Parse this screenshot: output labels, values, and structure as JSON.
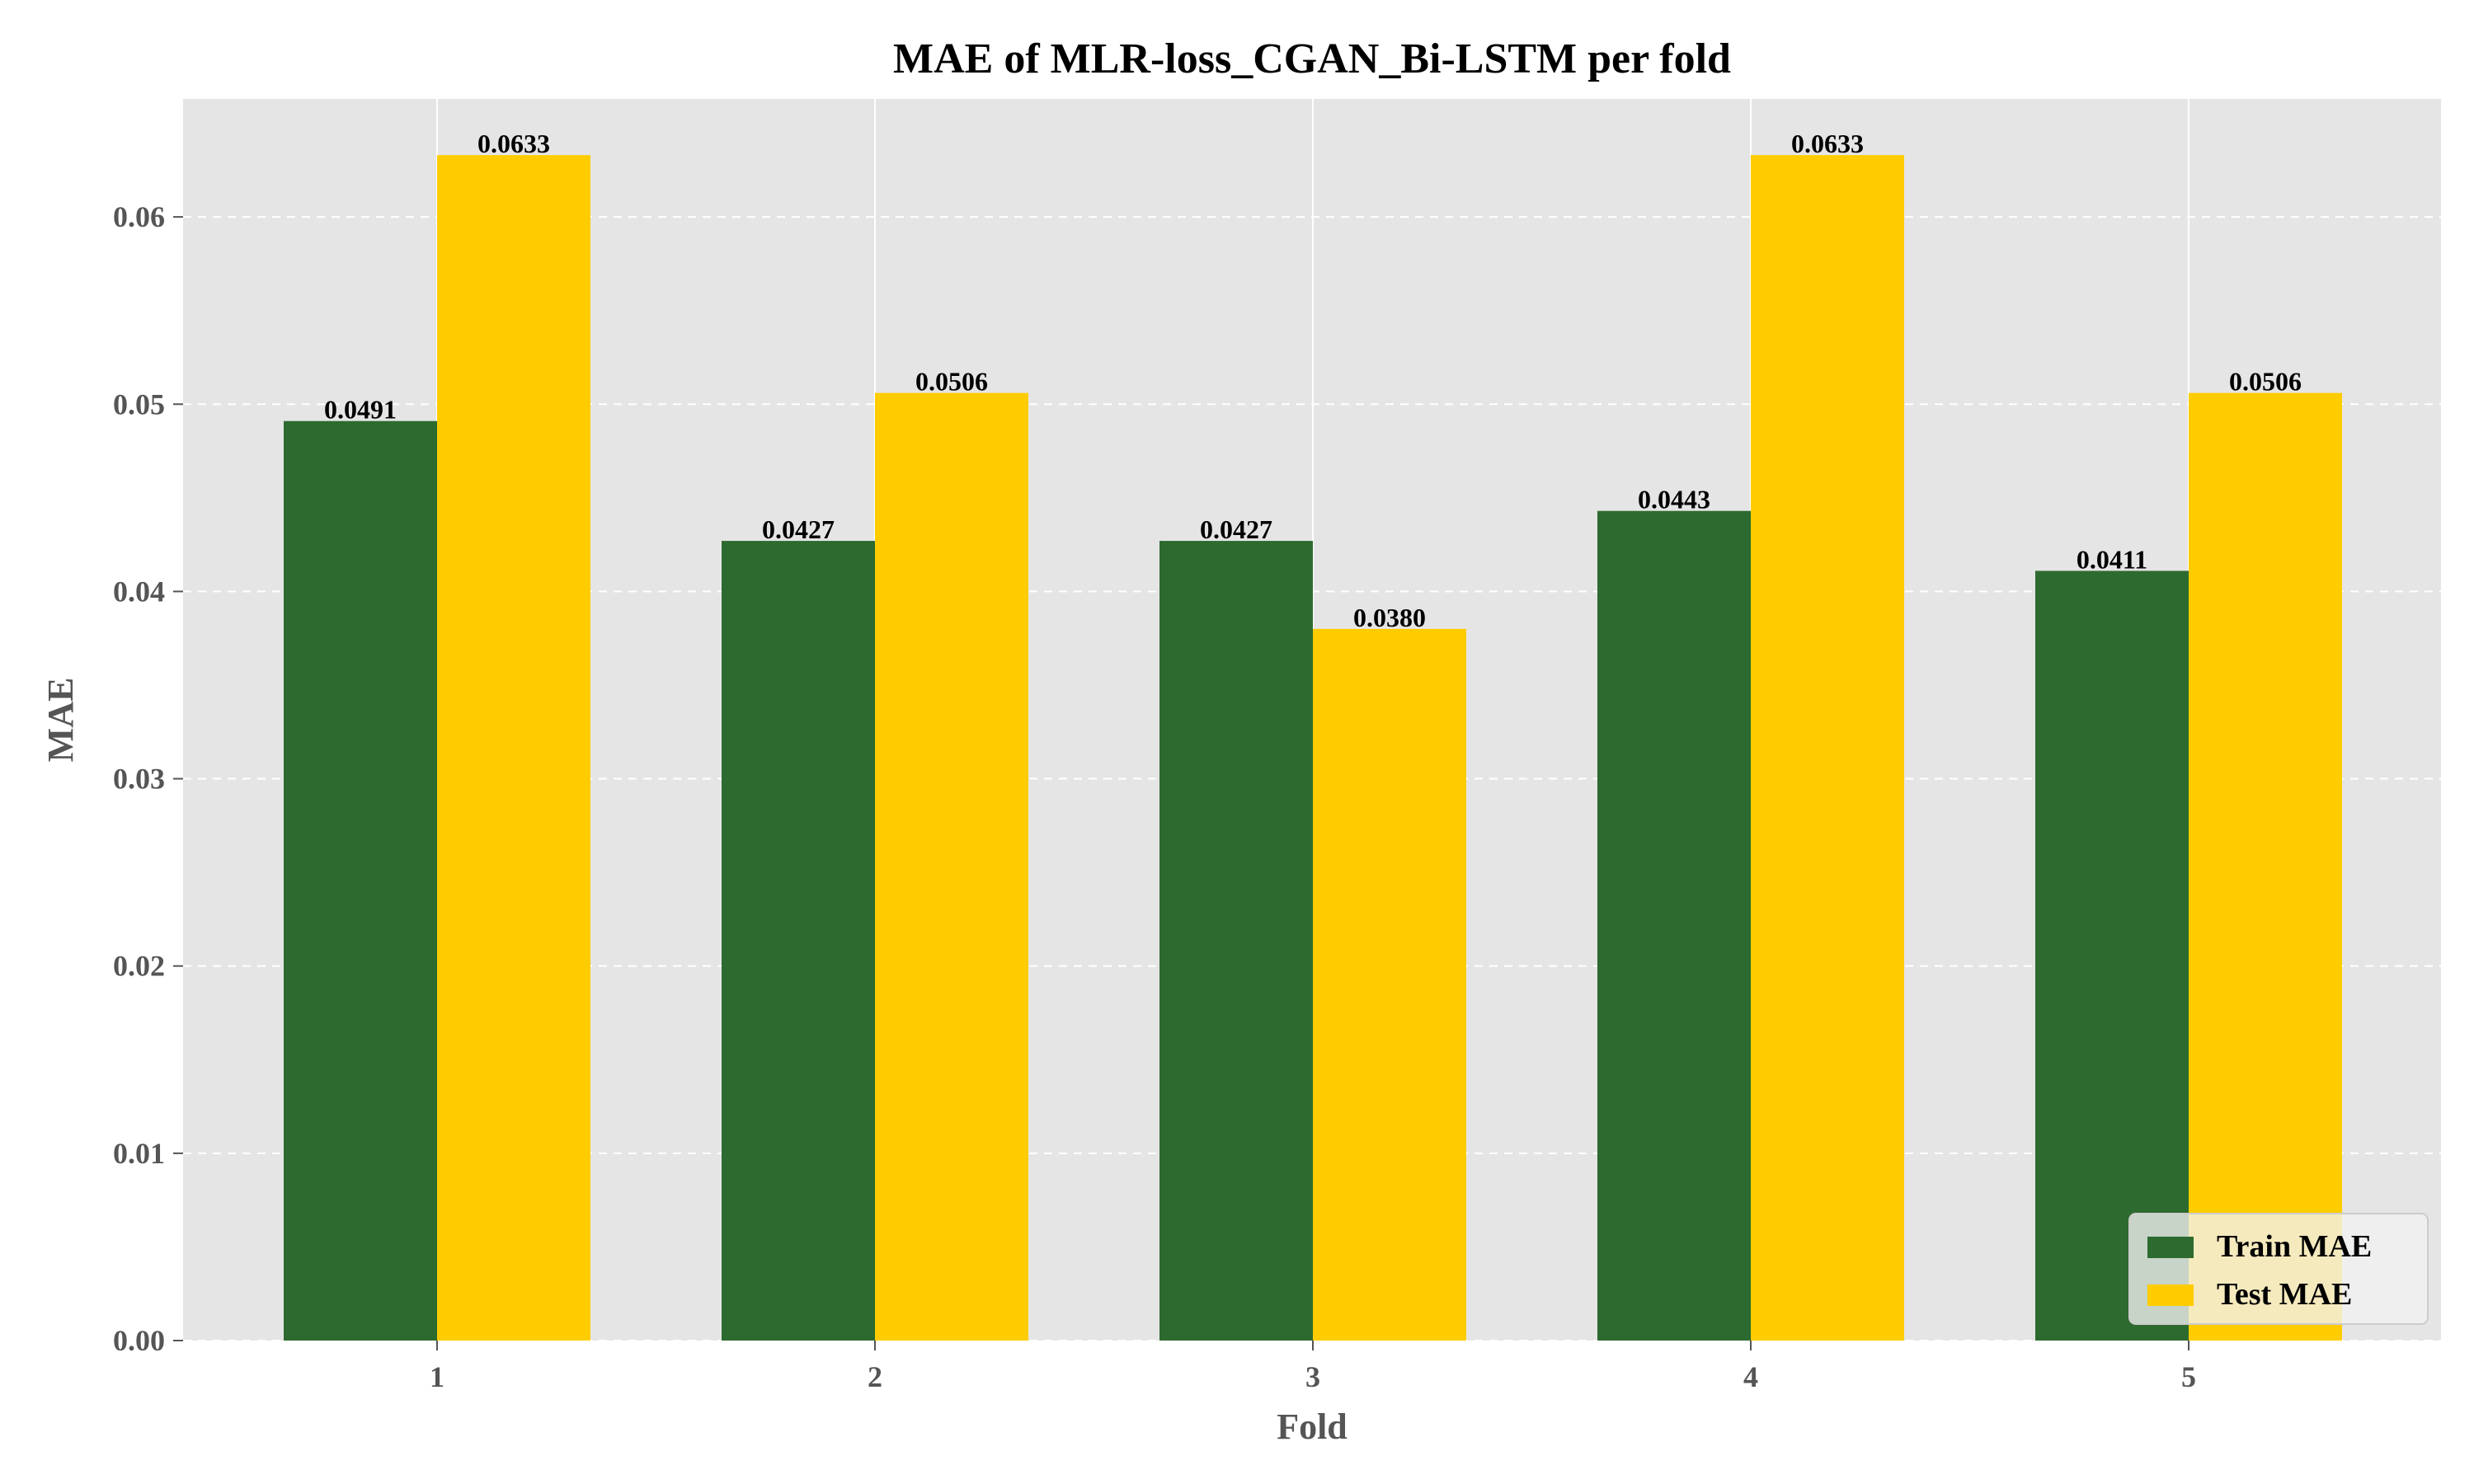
{
  "chart_data": {
    "type": "bar",
    "title": "MAE of MLR-loss_CGAN_Bi-LSTM per fold",
    "xlabel": "Fold",
    "ylabel": "MAE",
    "categories": [
      "1",
      "2",
      "3",
      "4",
      "5"
    ],
    "series": [
      {
        "name": "Train MAE",
        "color": "#2d6a2f",
        "values": [
          0.0491,
          0.0427,
          0.0427,
          0.0443,
          0.0411
        ],
        "labels": [
          "0.0491",
          "0.0427",
          "0.0427",
          "0.0443",
          "0.0411"
        ]
      },
      {
        "name": "Test MAE",
        "color": "#ffcc00",
        "values": [
          0.0633,
          0.0506,
          0.038,
          0.0633,
          0.0506
        ],
        "labels": [
          "0.0633",
          "0.0506",
          "0.0380",
          "0.0633",
          "0.0506"
        ]
      }
    ],
    "ylim": [
      0,
      0.0663
    ],
    "yticks": [
      0.0,
      0.01,
      0.02,
      0.03,
      0.04,
      0.05,
      0.06
    ],
    "ytick_labels": [
      "0.00",
      "0.01",
      "0.02",
      "0.03",
      "0.04",
      "0.05",
      "0.06"
    ],
    "grid": {
      "y": "dashed",
      "x": "solid"
    },
    "legend_position": "bottom-right",
    "background": "#e5e5e5"
  }
}
